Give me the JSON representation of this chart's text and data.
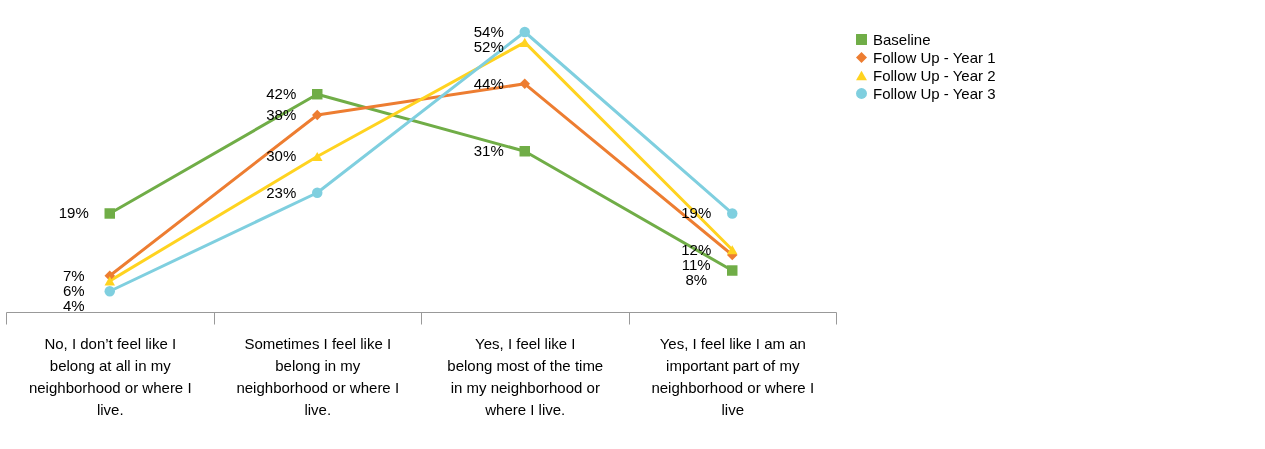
{
  "chart_data": {
    "type": "line",
    "categories": [
      "No, I don’t feel like I belong at all in my neighborhood or where I live.",
      "Sometimes I feel like I belong in my neighborhood or where I live.",
      "Yes, I feel like I belong most of the time in my neighborhood or where I live.",
      "Yes, I feel like I am an important part of my neighborhood or where I live"
    ],
    "series": [
      {
        "name": "Baseline",
        "color": "#70ad47",
        "marker": "square",
        "values": [
          19,
          42,
          31,
          8
        ],
        "value_labels": [
          "19%",
          "42%",
          "31%",
          "8%"
        ]
      },
      {
        "name": "Follow Up - Year 1",
        "color": "#ed7d31",
        "marker": "diamond",
        "values": [
          7,
          38,
          44,
          11
        ],
        "value_labels": [
          "7%",
          "38%",
          "44%",
          "11%"
        ]
      },
      {
        "name": "Follow Up - Year 2",
        "color": "#ffd320",
        "marker": "triangle",
        "values": [
          6,
          30,
          52,
          12
        ],
        "value_labels": [
          "6%",
          "30%",
          "52%",
          "12%"
        ]
      },
      {
        "name": "Follow Up - Year 3",
        "color": "#7fcfdf",
        "marker": "circle",
        "values": [
          4,
          23,
          54,
          19
        ],
        "value_labels": [
          "4%",
          "23%",
          "54%",
          "19%"
        ]
      }
    ],
    "legend": "right"
  }
}
